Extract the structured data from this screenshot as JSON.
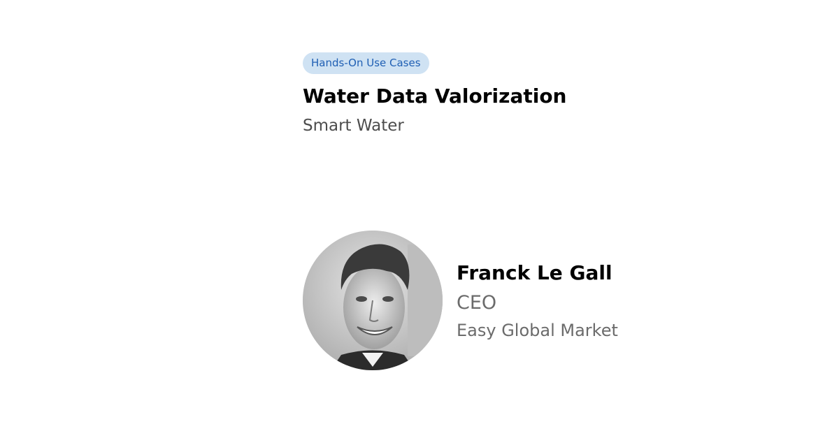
{
  "session": {
    "tag": "Hands-On Use Cases",
    "title": "Water Data Valorization",
    "subtitle": "Smart Water"
  },
  "speaker": {
    "name": "Franck Le Gall",
    "role": "CEO",
    "company": "Easy Global Market",
    "photo": "speaker-portrait-photo"
  },
  "colors": {
    "tag_background": "#cfe2f3",
    "tag_text": "#1f5fb4",
    "title": "#000000",
    "subtitle": "#4d4d4d",
    "muted": "#6b6b6b"
  }
}
